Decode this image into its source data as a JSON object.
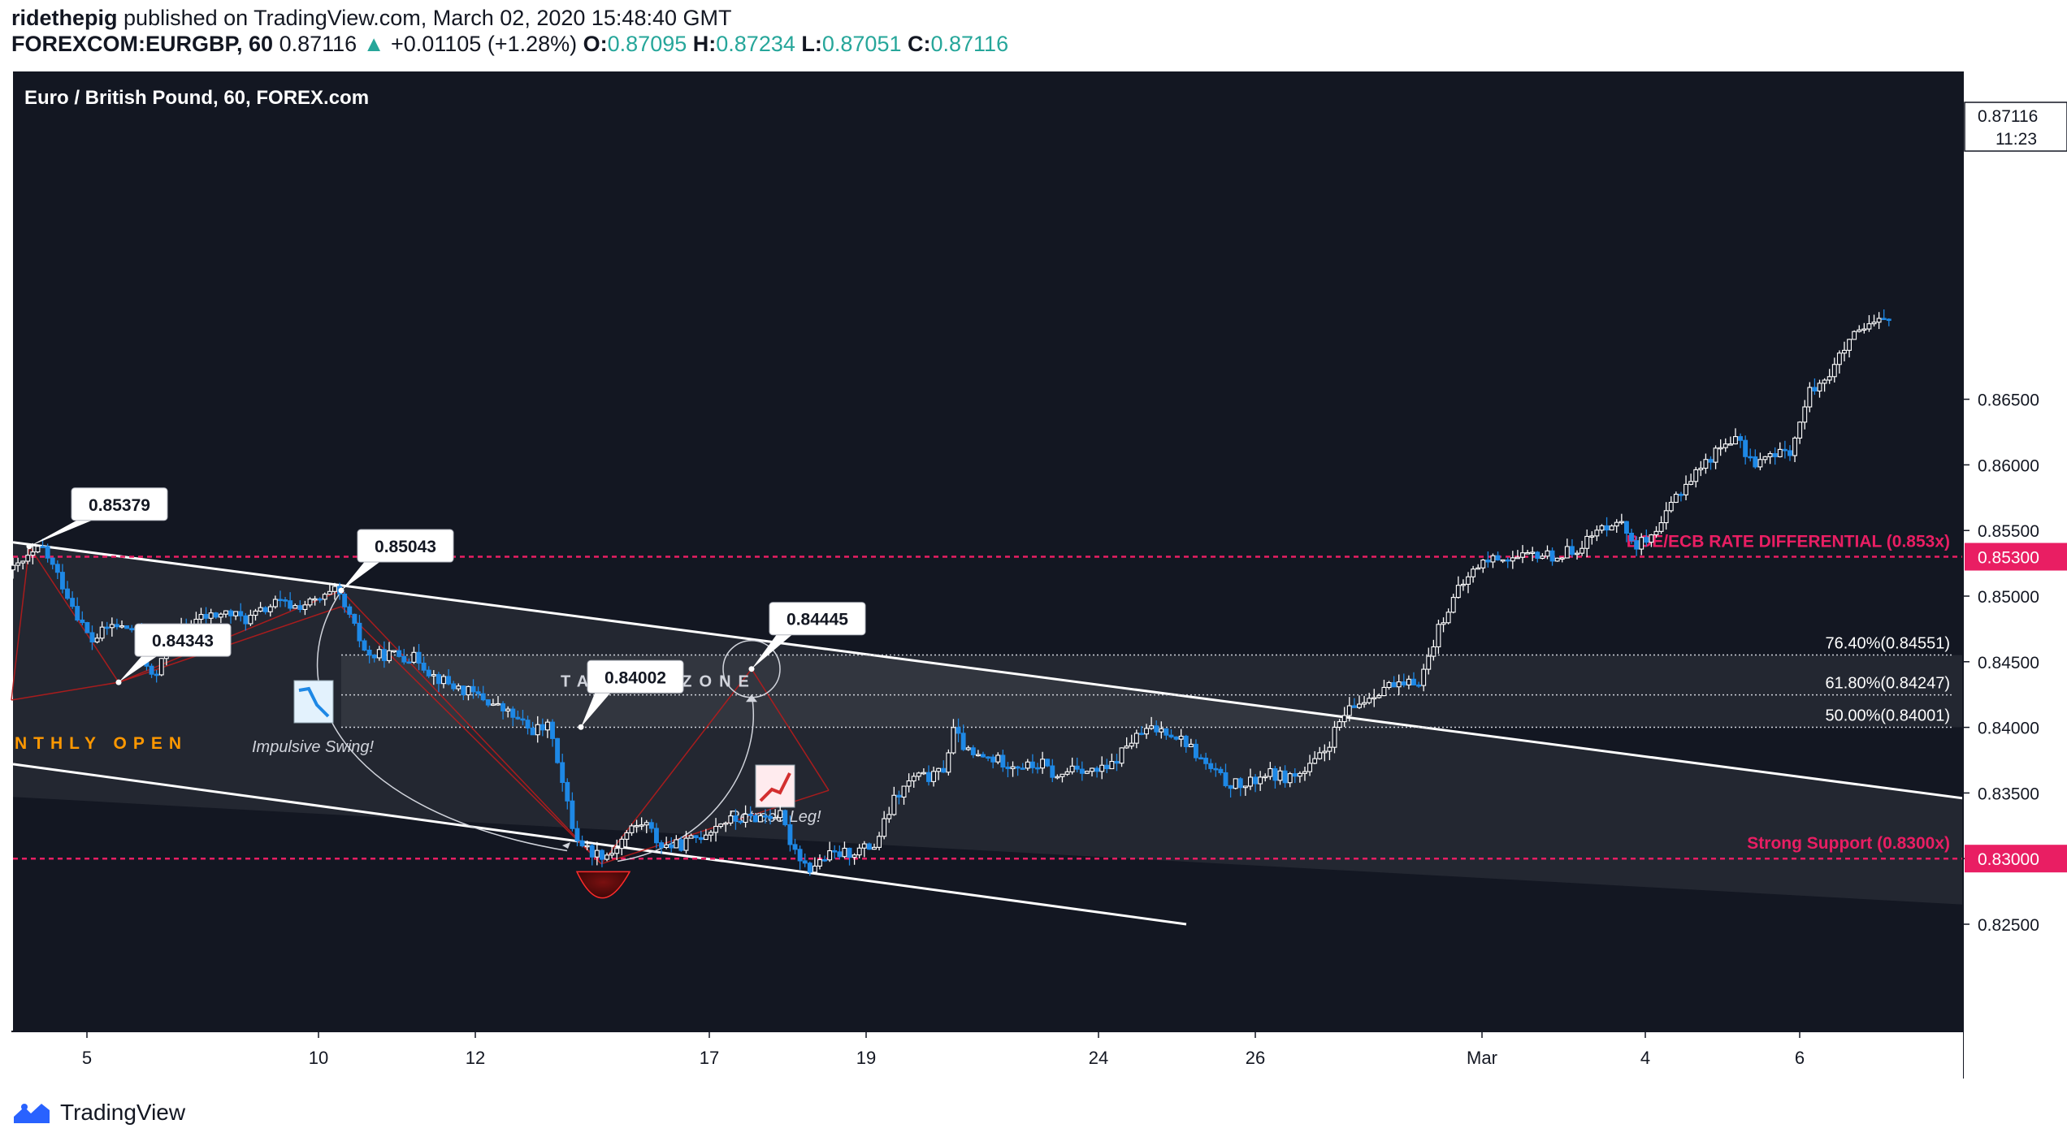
{
  "header": {
    "author": "ridethepig",
    "published_text": "published on TradingView.com, March 02, 2020 15:48:40 GMT",
    "symbol": "FOREXCOM:EURGBP, 60",
    "last": "0.87116",
    "change": "+0.01105 (+1.28%)",
    "o_label": "O:",
    "o_value": "0.87095",
    "h_label": "H:",
    "h_value": "0.87234",
    "l_label": "L:",
    "l_value": "0.87051",
    "c_label": "C:",
    "c_value": "0.87116"
  },
  "footer": {
    "brand": "TradingView"
  },
  "colors": {
    "background": "#131722",
    "up_candle": "#ffffff",
    "down_candle": "#1e88e5",
    "level_line": "#e91e63",
    "channel": "#ffffff",
    "annotation_red": "#b71c1c",
    "monthly_open": "#ff9800",
    "change_up": "#26a69a"
  },
  "chart_data": {
    "type": "candlestick",
    "title": "Euro / British Pound, 60, FOREX.com",
    "x_ticks": [
      "5",
      "10",
      "12",
      "17",
      "19",
      "24",
      "26",
      "Mar",
      "4",
      "6"
    ],
    "y_ticks": [
      "0.82500",
      "0.83000",
      "0.83500",
      "0.84000",
      "0.84500",
      "0.85000",
      "0.85500",
      "0.86000",
      "0.86500"
    ],
    "ylim": [
      0.8245,
      0.8725
    ],
    "last_price": "0.87116",
    "countdown": "11:23",
    "price_path": [
      [
        0,
        0.852
      ],
      [
        1.5,
        0.8537
      ],
      [
        2.5,
        0.851
      ],
      [
        4,
        0.8465
      ],
      [
        5,
        0.8478
      ],
      [
        6.3,
        0.8474
      ],
      [
        7.2,
        0.8434
      ],
      [
        8.2,
        0.847
      ],
      [
        9.5,
        0.8483
      ],
      [
        11,
        0.8487
      ],
      [
        12,
        0.8482
      ],
      [
        13.5,
        0.8495
      ],
      [
        14.5,
        0.8492
      ],
      [
        15.8,
        0.8497
      ],
      [
        16.6,
        0.8504
      ],
      [
        17.2,
        0.8485
      ],
      [
        18.2,
        0.8454
      ],
      [
        19.5,
        0.8456
      ],
      [
        20.8,
        0.8452
      ],
      [
        21.5,
        0.844
      ],
      [
        22.5,
        0.8432
      ],
      [
        24,
        0.8423
      ],
      [
        25.5,
        0.841
      ],
      [
        26.5,
        0.8398
      ],
      [
        27.6,
        0.84
      ],
      [
        28.2,
        0.8355
      ],
      [
        28.8,
        0.8318
      ],
      [
        29.6,
        0.8305
      ],
      [
        30.6,
        0.8303
      ],
      [
        31.6,
        0.8322
      ],
      [
        32.4,
        0.8328
      ],
      [
        33.2,
        0.831
      ],
      [
        34.2,
        0.831
      ],
      [
        35.3,
        0.8318
      ],
      [
        36.3,
        0.8328
      ],
      [
        37.3,
        0.833
      ],
      [
        38.3,
        0.8332
      ],
      [
        39.3,
        0.8334
      ],
      [
        39.9,
        0.8312
      ],
      [
        40.8,
        0.8292
      ],
      [
        41.8,
        0.8302
      ],
      [
        43,
        0.8305
      ],
      [
        44.2,
        0.831
      ],
      [
        45.2,
        0.8345
      ],
      [
        46.2,
        0.8362
      ],
      [
        47.2,
        0.8362
      ],
      [
        47.8,
        0.837
      ],
      [
        48.2,
        0.8398
      ],
      [
        49.1,
        0.8378
      ],
      [
        50.2,
        0.8376
      ],
      [
        51.2,
        0.8372
      ],
      [
        52.2,
        0.837
      ],
      [
        52.8,
        0.8372
      ],
      [
        53.6,
        0.836
      ],
      [
        54.4,
        0.8372
      ],
      [
        55.2,
        0.8366
      ],
      [
        56.2,
        0.8368
      ],
      [
        57.2,
        0.8388
      ],
      [
        58.2,
        0.8398
      ],
      [
        59.2,
        0.8398
      ],
      [
        60.2,
        0.8388
      ],
      [
        61.1,
        0.8372
      ],
      [
        62.2,
        0.8358
      ],
      [
        63.2,
        0.8355
      ],
      [
        64.2,
        0.8365
      ],
      [
        65.2,
        0.8362
      ],
      [
        66.2,
        0.8365
      ],
      [
        67.2,
        0.838
      ],
      [
        68.2,
        0.8408
      ],
      [
        69.2,
        0.842
      ],
      [
        70.4,
        0.8432
      ],
      [
        71.2,
        0.843
      ],
      [
        72.2,
        0.8437
      ],
      [
        73.2,
        0.848
      ],
      [
        74.2,
        0.8506
      ],
      [
        75.2,
        0.8525
      ],
      [
        76.2,
        0.853
      ],
      [
        77.2,
        0.8528
      ],
      [
        78.2,
        0.8532
      ],
      [
        79.2,
        0.853
      ],
      [
        80.2,
        0.8537
      ],
      [
        81.2,
        0.8548
      ],
      [
        82.2,
        0.856
      ],
      [
        83.2,
        0.854
      ],
      [
        84.2,
        0.8543
      ],
      [
        85.2,
        0.8575
      ],
      [
        86.2,
        0.8593
      ],
      [
        87.2,
        0.8608
      ],
      [
        88.2,
        0.8622
      ],
      [
        89.2,
        0.8602
      ],
      [
        90.2,
        0.8606
      ],
      [
        91.2,
        0.8612
      ],
      [
        92.2,
        0.8658
      ],
      [
        93.2,
        0.867
      ],
      [
        94.2,
        0.8695
      ],
      [
        95.2,
        0.8705
      ],
      [
        96.2,
        0.8712
      ]
    ],
    "horizontal_levels": [
      {
        "label": "BOE/ECB RATE DIFFERENTIAL (0.853x)",
        "value": 0.853,
        "axis_label": "0.85300"
      },
      {
        "label": "Strong Support (0.8300x)",
        "value": 0.83,
        "axis_label": "0.83000"
      }
    ],
    "fibonacci": [
      {
        "label": "76.40%(0.84551)",
        "value": 0.84551
      },
      {
        "label": "61.80%(0.84247)",
        "value": 0.84247
      },
      {
        "label": "50.00%(0.84001)",
        "value": 0.84001
      }
    ],
    "callouts": [
      {
        "text": "0.85379",
        "value": 0.85379
      },
      {
        "text": "0.85043",
        "value": 0.85043
      },
      {
        "text": "0.84343",
        "value": 0.84343
      },
      {
        "text": "0.84002",
        "value": 0.84002
      },
      {
        "text": "0.84445",
        "value": 0.84445
      }
    ],
    "annotations": {
      "target_zone": "TARGET ZONE",
      "impulsive_swing": "Impulsive Swing!",
      "retrace_leg": "Retrace Leg!",
      "monthly_open": "NTHLY OPEN"
    },
    "grid": false,
    "legend": "none"
  }
}
